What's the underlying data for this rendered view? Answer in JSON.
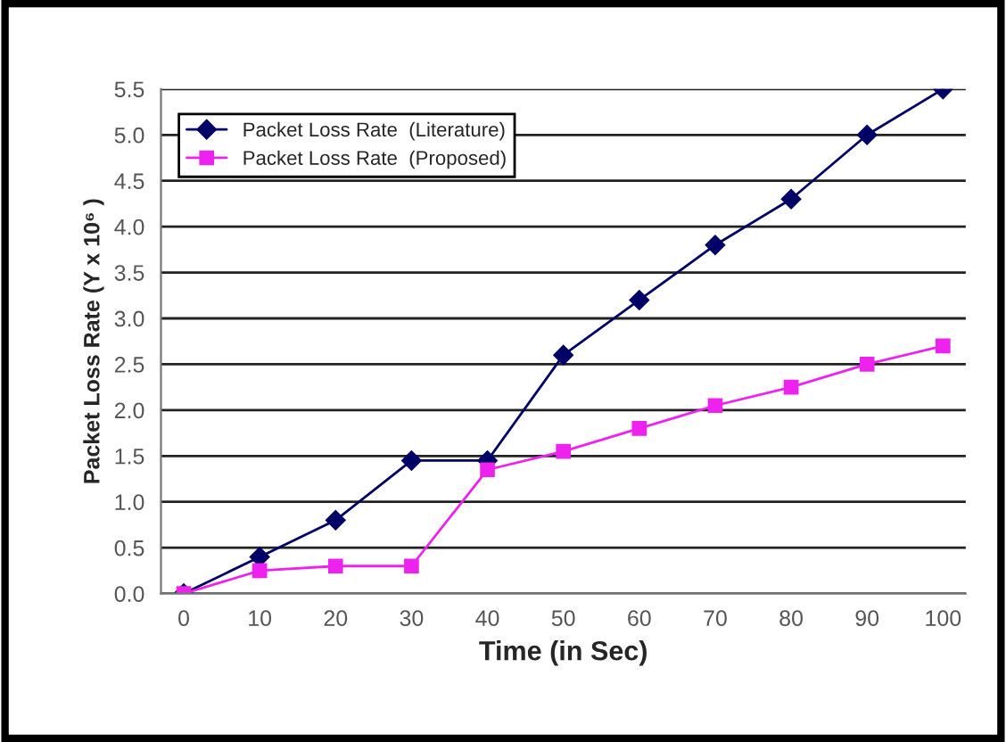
{
  "chart_data": {
    "type": "line",
    "xlabel": "Time (in Sec)",
    "ylabel": "Packet Loss Rate (Y x 10⁶ )",
    "categories": [
      "0",
      "10",
      "20",
      "30",
      "40",
      "50",
      "60",
      "70",
      "80",
      "90",
      "100"
    ],
    "series": [
      {
        "name": "Packet Loss Rate  (Literature)",
        "color": "#000066",
        "marker": "diamond",
        "values": [
          0,
          0.4,
          0.8,
          1.45,
          1.45,
          2.6,
          3.2,
          3.8,
          4.3,
          5.0,
          5.5
        ]
      },
      {
        "name": "Packet Loss Rate  (Proposed)",
        "color": "#ee22ee",
        "marker": "square",
        "values": [
          0,
          0.25,
          0.3,
          0.3,
          1.35,
          1.55,
          1.8,
          2.05,
          2.25,
          2.5,
          2.7
        ]
      }
    ],
    "ylim": [
      0,
      5.5
    ],
    "yticks": [
      {
        "value": 0,
        "label": "0.0"
      },
      {
        "value": 0.5,
        "label": "0.5"
      },
      {
        "value": 1,
        "label": "1.0"
      },
      {
        "value": 1.5,
        "label": "1.5"
      },
      {
        "value": 2,
        "label": "2.0"
      },
      {
        "value": 2.5,
        "label": "2.5"
      },
      {
        "value": 3,
        "label": "3.0"
      },
      {
        "value": 3.5,
        "label": "3.5"
      },
      {
        "value": 4,
        "label": "4.0"
      },
      {
        "value": 4.5,
        "label": "4.5"
      },
      {
        "value": 5,
        "label": "5.0"
      },
      {
        "value": 5.5,
        "label": "5.5"
      }
    ],
    "grid": "y",
    "legend": "top left",
    "line_style": "solid"
  }
}
